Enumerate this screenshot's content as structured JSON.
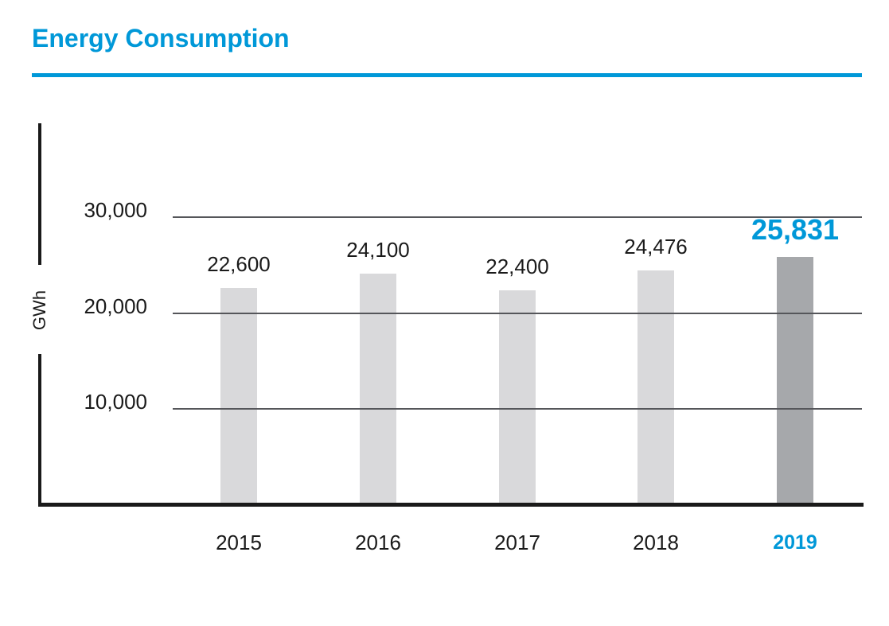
{
  "header": {
    "title": "Energy Consumption"
  },
  "chart_data": {
    "type": "bar",
    "title": "Energy Consumption",
    "ylabel": "GWh",
    "xlabel": "",
    "categories": [
      "2015",
      "2016",
      "2017",
      "2018",
      "2019"
    ],
    "values": [
      22600,
      24100,
      22400,
      24476,
      25831
    ],
    "value_labels": [
      "22,600",
      "24,100",
      "22,400",
      "24,476",
      "25,831"
    ],
    "ytick_values": [
      30000,
      20000,
      10000
    ],
    "ytick_labels": [
      "30,000",
      "20,000",
      "10,000"
    ],
    "ylim": [
      0,
      30000
    ],
    "grid": "horizontal",
    "legend": "none",
    "highlight_index": 4,
    "highlight_category": "2019",
    "colors": {
      "accent": "#0098d8",
      "bar": "#d9d9db",
      "bar_highlight": "#a6a8ab",
      "gridline": "#55565a",
      "axis": "#1a1a1a",
      "text": "#1a1a1a"
    }
  }
}
